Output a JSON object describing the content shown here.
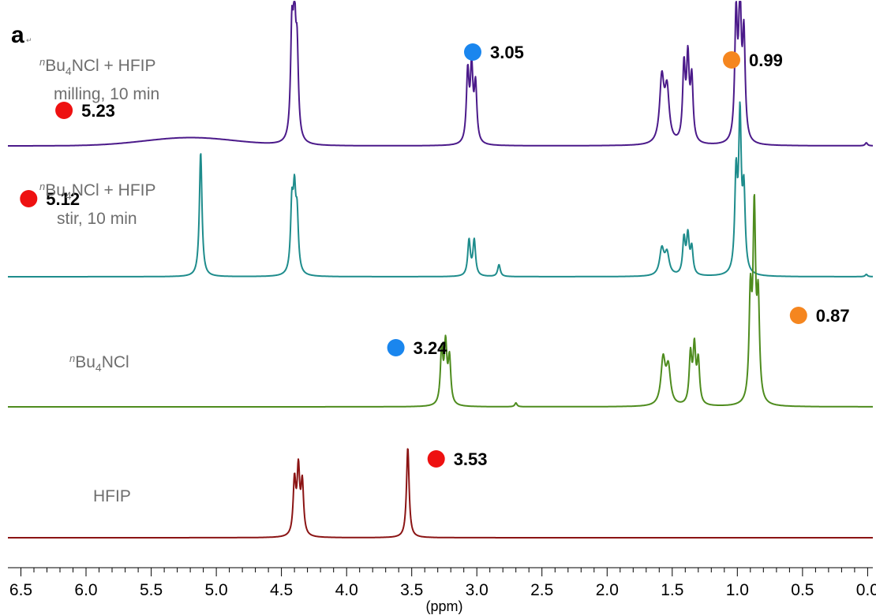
{
  "panel_label": "a",
  "x_axis": {
    "label": "(ppm)",
    "reversed": true,
    "range": [
      6.6,
      -0.04
    ],
    "ticks": [
      "6.5",
      "6.0",
      "5.5",
      "5.0",
      "4.5",
      "4.0",
      "3.5",
      "3.0",
      "2.5",
      "2.0",
      "1.5",
      "1.0",
      "0.5",
      "0.0"
    ]
  },
  "samples": {
    "milling": {
      "label_part1": "Bu",
      "sub": "4",
      "label_part2": "NCl + HFIP",
      "sup": "n",
      "line2": "milling, 10 min"
    },
    "stir": {
      "label_part1": "Bu",
      "sub": "4",
      "label_part2": "NCl + HFIP",
      "sup": "n",
      "line2": "stir, 10 min"
    },
    "bu4ncl": {
      "label_part1": "Bu",
      "sub": "4",
      "label_part2": "NCl",
      "sup": "n"
    },
    "hfip": {
      "label": "HFIP"
    }
  },
  "marker_colors": {
    "red": "#ee1111",
    "blue": "#1a86ee",
    "orange": "#f5861f"
  },
  "chart_data": {
    "type": "line",
    "title": "",
    "xlabel": "(ppm)",
    "ylabel": "",
    "xlim": [
      6.6,
      -0.04
    ],
    "series": [
      {
        "name": "nBu4NCl + HFIP milling, 10 min",
        "color": "#4b1a8a",
        "peaks": [
          {
            "ppm": 5.2,
            "height": 0.08,
            "width": 0.35,
            "shape": "gauss"
          },
          {
            "ppm": 4.42,
            "height": 1.0,
            "width": 0.012,
            "shape": "lorentz"
          },
          {
            "ppm": 4.4,
            "height": 1.05,
            "width": 0.012,
            "shape": "lorentz"
          },
          {
            "ppm": 4.38,
            "height": 0.8,
            "width": 0.012,
            "shape": "lorentz"
          },
          {
            "ppm": 3.07,
            "height": 0.68,
            "width": 0.012,
            "shape": "lorentz"
          },
          {
            "ppm": 3.04,
            "height": 0.7,
            "width": 0.012,
            "shape": "lorentz"
          },
          {
            "ppm": 3.01,
            "height": 0.55,
            "width": 0.012,
            "shape": "lorentz"
          },
          {
            "ppm": 1.58,
            "height": 0.62,
            "width": 0.02,
            "shape": "lorentz"
          },
          {
            "ppm": 1.54,
            "height": 0.5,
            "width": 0.02,
            "shape": "lorentz"
          },
          {
            "ppm": 1.41,
            "height": 0.72,
            "width": 0.012,
            "shape": "lorentz"
          },
          {
            "ppm": 1.38,
            "height": 0.78,
            "width": 0.012,
            "shape": "lorentz"
          },
          {
            "ppm": 1.35,
            "height": 0.6,
            "width": 0.012,
            "shape": "lorentz"
          },
          {
            "ppm": 1.01,
            "height": 1.2,
            "width": 0.012,
            "shape": "lorentz"
          },
          {
            "ppm": 0.98,
            "height": 1.3,
            "width": 0.012,
            "shape": "lorentz"
          },
          {
            "ppm": 0.95,
            "height": 1.0,
            "width": 0.012,
            "shape": "lorentz"
          },
          {
            "ppm": 0.01,
            "height": 0.03,
            "width": 0.01,
            "shape": "lorentz"
          }
        ],
        "annotations": [
          {
            "ppm": 5.23,
            "marker": "red",
            "label": "5.23"
          },
          {
            "ppm": 3.05,
            "marker": "blue",
            "label": "3.05"
          },
          {
            "ppm": 0.99,
            "marker": "orange",
            "label": "0.99"
          }
        ]
      },
      {
        "name": "nBu4NCl + HFIP stir, 10 min",
        "color": "#1e8c8c",
        "peaks": [
          {
            "ppm": 5.12,
            "height": 1.05,
            "width": 0.012,
            "shape": "lorentz"
          },
          {
            "ppm": 4.42,
            "height": 0.55,
            "width": 0.012,
            "shape": "lorentz"
          },
          {
            "ppm": 4.4,
            "height": 0.6,
            "width": 0.012,
            "shape": "lorentz"
          },
          {
            "ppm": 4.38,
            "height": 0.45,
            "width": 0.012,
            "shape": "lorentz"
          },
          {
            "ppm": 3.06,
            "height": 0.3,
            "width": 0.012,
            "shape": "lorentz"
          },
          {
            "ppm": 3.02,
            "height": 0.3,
            "width": 0.012,
            "shape": "lorentz"
          },
          {
            "ppm": 2.83,
            "height": 0.1,
            "width": 0.012,
            "shape": "lorentz"
          },
          {
            "ppm": 1.58,
            "height": 0.22,
            "width": 0.02,
            "shape": "lorentz"
          },
          {
            "ppm": 1.54,
            "height": 0.18,
            "width": 0.02,
            "shape": "lorentz"
          },
          {
            "ppm": 1.41,
            "height": 0.3,
            "width": 0.012,
            "shape": "lorentz"
          },
          {
            "ppm": 1.38,
            "height": 0.32,
            "width": 0.012,
            "shape": "lorentz"
          },
          {
            "ppm": 1.35,
            "height": 0.22,
            "width": 0.012,
            "shape": "lorentz"
          },
          {
            "ppm": 1.01,
            "height": 0.8,
            "width": 0.012,
            "shape": "lorentz"
          },
          {
            "ppm": 0.98,
            "height": 1.28,
            "width": 0.012,
            "shape": "lorentz"
          },
          {
            "ppm": 0.95,
            "height": 0.65,
            "width": 0.012,
            "shape": "lorentz"
          },
          {
            "ppm": 0.01,
            "height": 0.02,
            "width": 0.01,
            "shape": "lorentz"
          }
        ],
        "annotations": [
          {
            "ppm": 5.12,
            "marker": "red",
            "label": "5.12"
          }
        ]
      },
      {
        "name": "nBu4NCl",
        "color": "#4e8c1e",
        "peaks": [
          {
            "ppm": 3.27,
            "height": 0.42,
            "width": 0.012,
            "shape": "lorentz"
          },
          {
            "ppm": 3.24,
            "height": 0.45,
            "width": 0.012,
            "shape": "lorentz"
          },
          {
            "ppm": 3.21,
            "height": 0.35,
            "width": 0.012,
            "shape": "lorentz"
          },
          {
            "ppm": 2.7,
            "height": 0.03,
            "width": 0.01,
            "shape": "lorentz"
          },
          {
            "ppm": 1.57,
            "height": 0.35,
            "width": 0.02,
            "shape": "lorentz"
          },
          {
            "ppm": 1.53,
            "height": 0.28,
            "width": 0.02,
            "shape": "lorentz"
          },
          {
            "ppm": 1.36,
            "height": 0.38,
            "width": 0.012,
            "shape": "lorentz"
          },
          {
            "ppm": 1.33,
            "height": 0.43,
            "width": 0.012,
            "shape": "lorentz"
          },
          {
            "ppm": 1.3,
            "height": 0.33,
            "width": 0.012,
            "shape": "lorentz"
          },
          {
            "ppm": 0.9,
            "height": 0.8,
            "width": 0.012,
            "shape": "lorentz"
          },
          {
            "ppm": 0.87,
            "height": 1.45,
            "width": 0.012,
            "shape": "lorentz"
          },
          {
            "ppm": 0.84,
            "height": 0.75,
            "width": 0.012,
            "shape": "lorentz"
          }
        ],
        "annotations": [
          {
            "ppm": 3.24,
            "marker": "blue",
            "label": "3.24"
          },
          {
            "ppm": 0.87,
            "marker": "orange",
            "label": "0.87"
          }
        ]
      },
      {
        "name": "HFIP",
        "color": "#8b1414",
        "peaks": [
          {
            "ppm": 4.4,
            "height": 0.42,
            "width": 0.012,
            "shape": "lorentz"
          },
          {
            "ppm": 4.37,
            "height": 0.5,
            "width": 0.012,
            "shape": "lorentz"
          },
          {
            "ppm": 4.34,
            "height": 0.4,
            "width": 0.012,
            "shape": "lorentz"
          },
          {
            "ppm": 3.53,
            "height": 0.7,
            "width": 0.012,
            "shape": "lorentz"
          }
        ],
        "annotations": [
          {
            "ppm": 3.53,
            "marker": "red",
            "label": "3.53"
          }
        ]
      }
    ]
  }
}
